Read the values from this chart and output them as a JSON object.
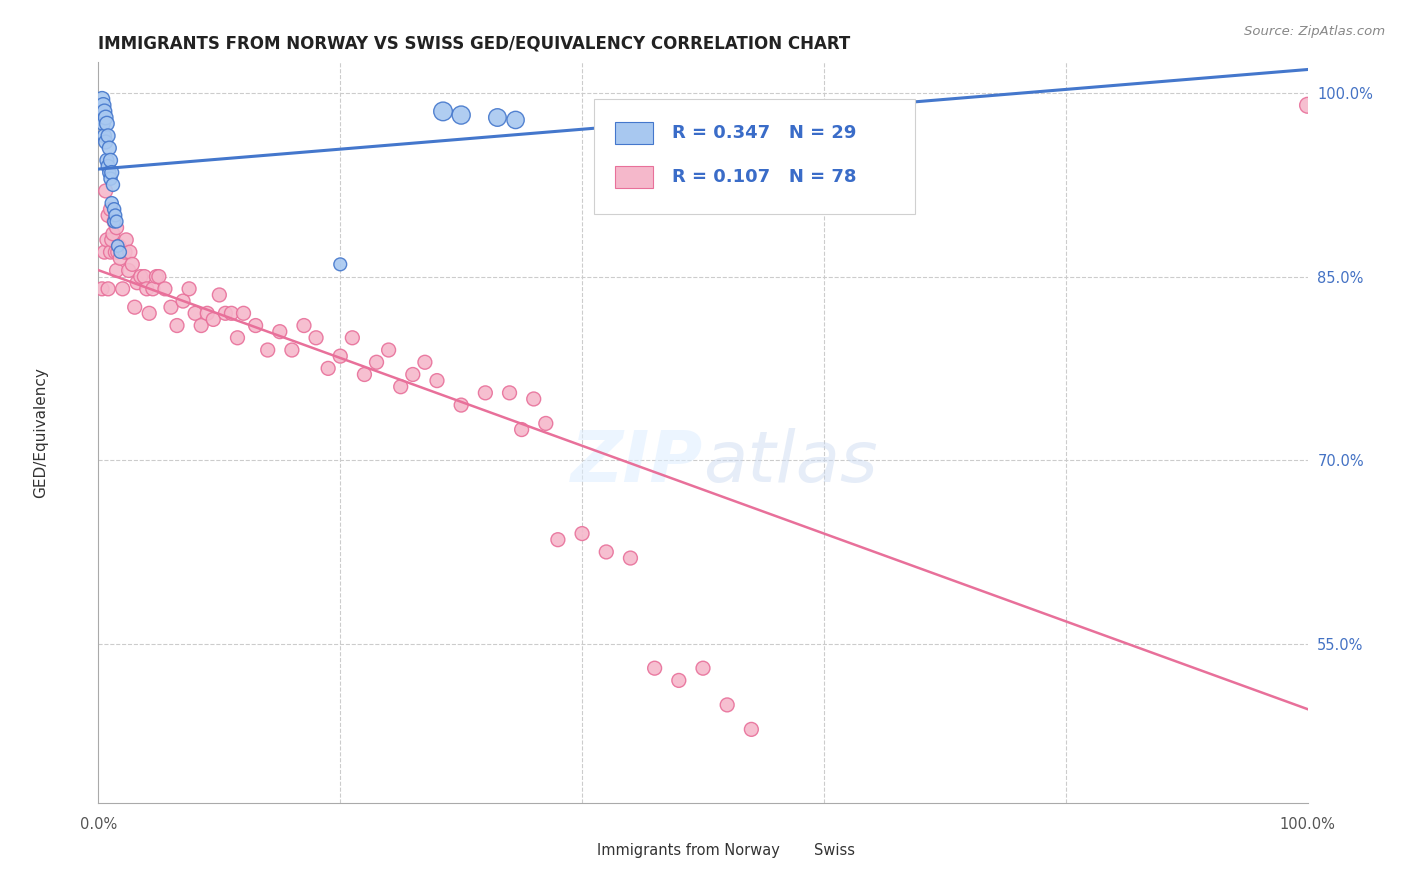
{
  "title": "IMMIGRANTS FROM NORWAY VS SWISS GED/EQUIVALENCY CORRELATION CHART",
  "source": "Source: ZipAtlas.com",
  "ylabel": "GED/Equivalency",
  "legend_label1": "Immigrants from Norway",
  "legend_label2": "Swiss",
  "R_norway": 0.347,
  "N_norway": 29,
  "R_swiss": 0.107,
  "N_swiss": 78,
  "norway_color": "#a8c8f0",
  "swiss_color": "#f5b8cb",
  "norway_line_color": "#4477cc",
  "swiss_line_color": "#e8709a",
  "norway_x": [
    0.003,
    0.004,
    0.004,
    0.005,
    0.005,
    0.006,
    0.006,
    0.007,
    0.007,
    0.008,
    0.008,
    0.009,
    0.009,
    0.01,
    0.01,
    0.011,
    0.011,
    0.012,
    0.013,
    0.013,
    0.014,
    0.015,
    0.016,
    0.018,
    0.2,
    0.285,
    0.3,
    0.33,
    0.345
  ],
  "norway_y": [
    0.995,
    0.99,
    0.975,
    0.985,
    0.965,
    0.98,
    0.96,
    0.975,
    0.945,
    0.965,
    0.94,
    0.955,
    0.935,
    0.945,
    0.93,
    0.935,
    0.91,
    0.925,
    0.905,
    0.895,
    0.9,
    0.895,
    0.875,
    0.87,
    0.86,
    0.985,
    0.982,
    0.98,
    0.978
  ],
  "swiss_x": [
    0.003,
    0.005,
    0.006,
    0.007,
    0.008,
    0.008,
    0.01,
    0.01,
    0.011,
    0.012,
    0.013,
    0.014,
    0.015,
    0.015,
    0.016,
    0.017,
    0.018,
    0.02,
    0.022,
    0.023,
    0.025,
    0.026,
    0.028,
    0.03,
    0.032,
    0.035,
    0.038,
    0.04,
    0.042,
    0.045,
    0.048,
    0.05,
    0.055,
    0.06,
    0.065,
    0.07,
    0.075,
    0.08,
    0.085,
    0.09,
    0.095,
    0.1,
    0.105,
    0.11,
    0.115,
    0.12,
    0.13,
    0.14,
    0.15,
    0.16,
    0.17,
    0.18,
    0.19,
    0.2,
    0.21,
    0.22,
    0.23,
    0.24,
    0.25,
    0.26,
    0.27,
    0.28,
    0.3,
    0.32,
    0.34,
    0.35,
    0.36,
    0.37,
    0.38,
    0.4,
    0.42,
    0.44,
    0.46,
    0.48,
    0.5,
    0.52,
    0.54,
    1.0
  ],
  "swiss_y": [
    0.84,
    0.87,
    0.92,
    0.88,
    0.9,
    0.84,
    0.905,
    0.87,
    0.88,
    0.885,
    0.895,
    0.87,
    0.89,
    0.855,
    0.87,
    0.875,
    0.865,
    0.84,
    0.87,
    0.88,
    0.855,
    0.87,
    0.86,
    0.825,
    0.845,
    0.85,
    0.85,
    0.84,
    0.82,
    0.84,
    0.85,
    0.85,
    0.84,
    0.825,
    0.81,
    0.83,
    0.84,
    0.82,
    0.81,
    0.82,
    0.815,
    0.835,
    0.82,
    0.82,
    0.8,
    0.82,
    0.81,
    0.79,
    0.805,
    0.79,
    0.81,
    0.8,
    0.775,
    0.785,
    0.8,
    0.77,
    0.78,
    0.79,
    0.76,
    0.77,
    0.78,
    0.765,
    0.745,
    0.755,
    0.755,
    0.725,
    0.75,
    0.73,
    0.635,
    0.64,
    0.625,
    0.62,
    0.53,
    0.52,
    0.53,
    0.5,
    0.48,
    0.99
  ],
  "norway_sizes": [
    120,
    120,
    100,
    110,
    100,
    110,
    100,
    110,
    100,
    100,
    100,
    100,
    90,
    100,
    90,
    100,
    90,
    90,
    90,
    85,
    85,
    85,
    80,
    80,
    85,
    180,
    170,
    160,
    155
  ],
  "swiss_sizes": [
    100,
    100,
    100,
    100,
    100,
    100,
    100,
    100,
    100,
    100,
    100,
    100,
    100,
    100,
    100,
    100,
    100,
    100,
    100,
    100,
    100,
    100,
    100,
    100,
    100,
    100,
    100,
    100,
    100,
    100,
    100,
    100,
    100,
    100,
    100,
    100,
    100,
    100,
    100,
    100,
    100,
    100,
    100,
    100,
    100,
    100,
    100,
    100,
    100,
    100,
    100,
    100,
    100,
    100,
    100,
    100,
    100,
    100,
    100,
    100,
    100,
    100,
    100,
    100,
    100,
    100,
    100,
    100,
    100,
    100,
    100,
    100,
    100,
    100,
    100,
    100,
    100,
    130
  ],
  "background_color": "#ffffff",
  "grid_color": "#cccccc",
  "title_color": "#222222",
  "source_color": "#888888",
  "legend_text_color": "#3a6cc8",
  "right_ytick_color": "#4472c4",
  "ytick_values": [
    1.0,
    0.85,
    0.7,
    0.55
  ],
  "ytick_labels": [
    "100.0%",
    "85.0%",
    "70.0%",
    "55.0%"
  ],
  "ymin": 0.42,
  "ymax": 1.025,
  "xmin": 0.0,
  "xmax": 1.0,
  "norway_line_x": [
    0.0,
    1.0
  ],
  "swiss_line_x": [
    0.0,
    1.0
  ]
}
